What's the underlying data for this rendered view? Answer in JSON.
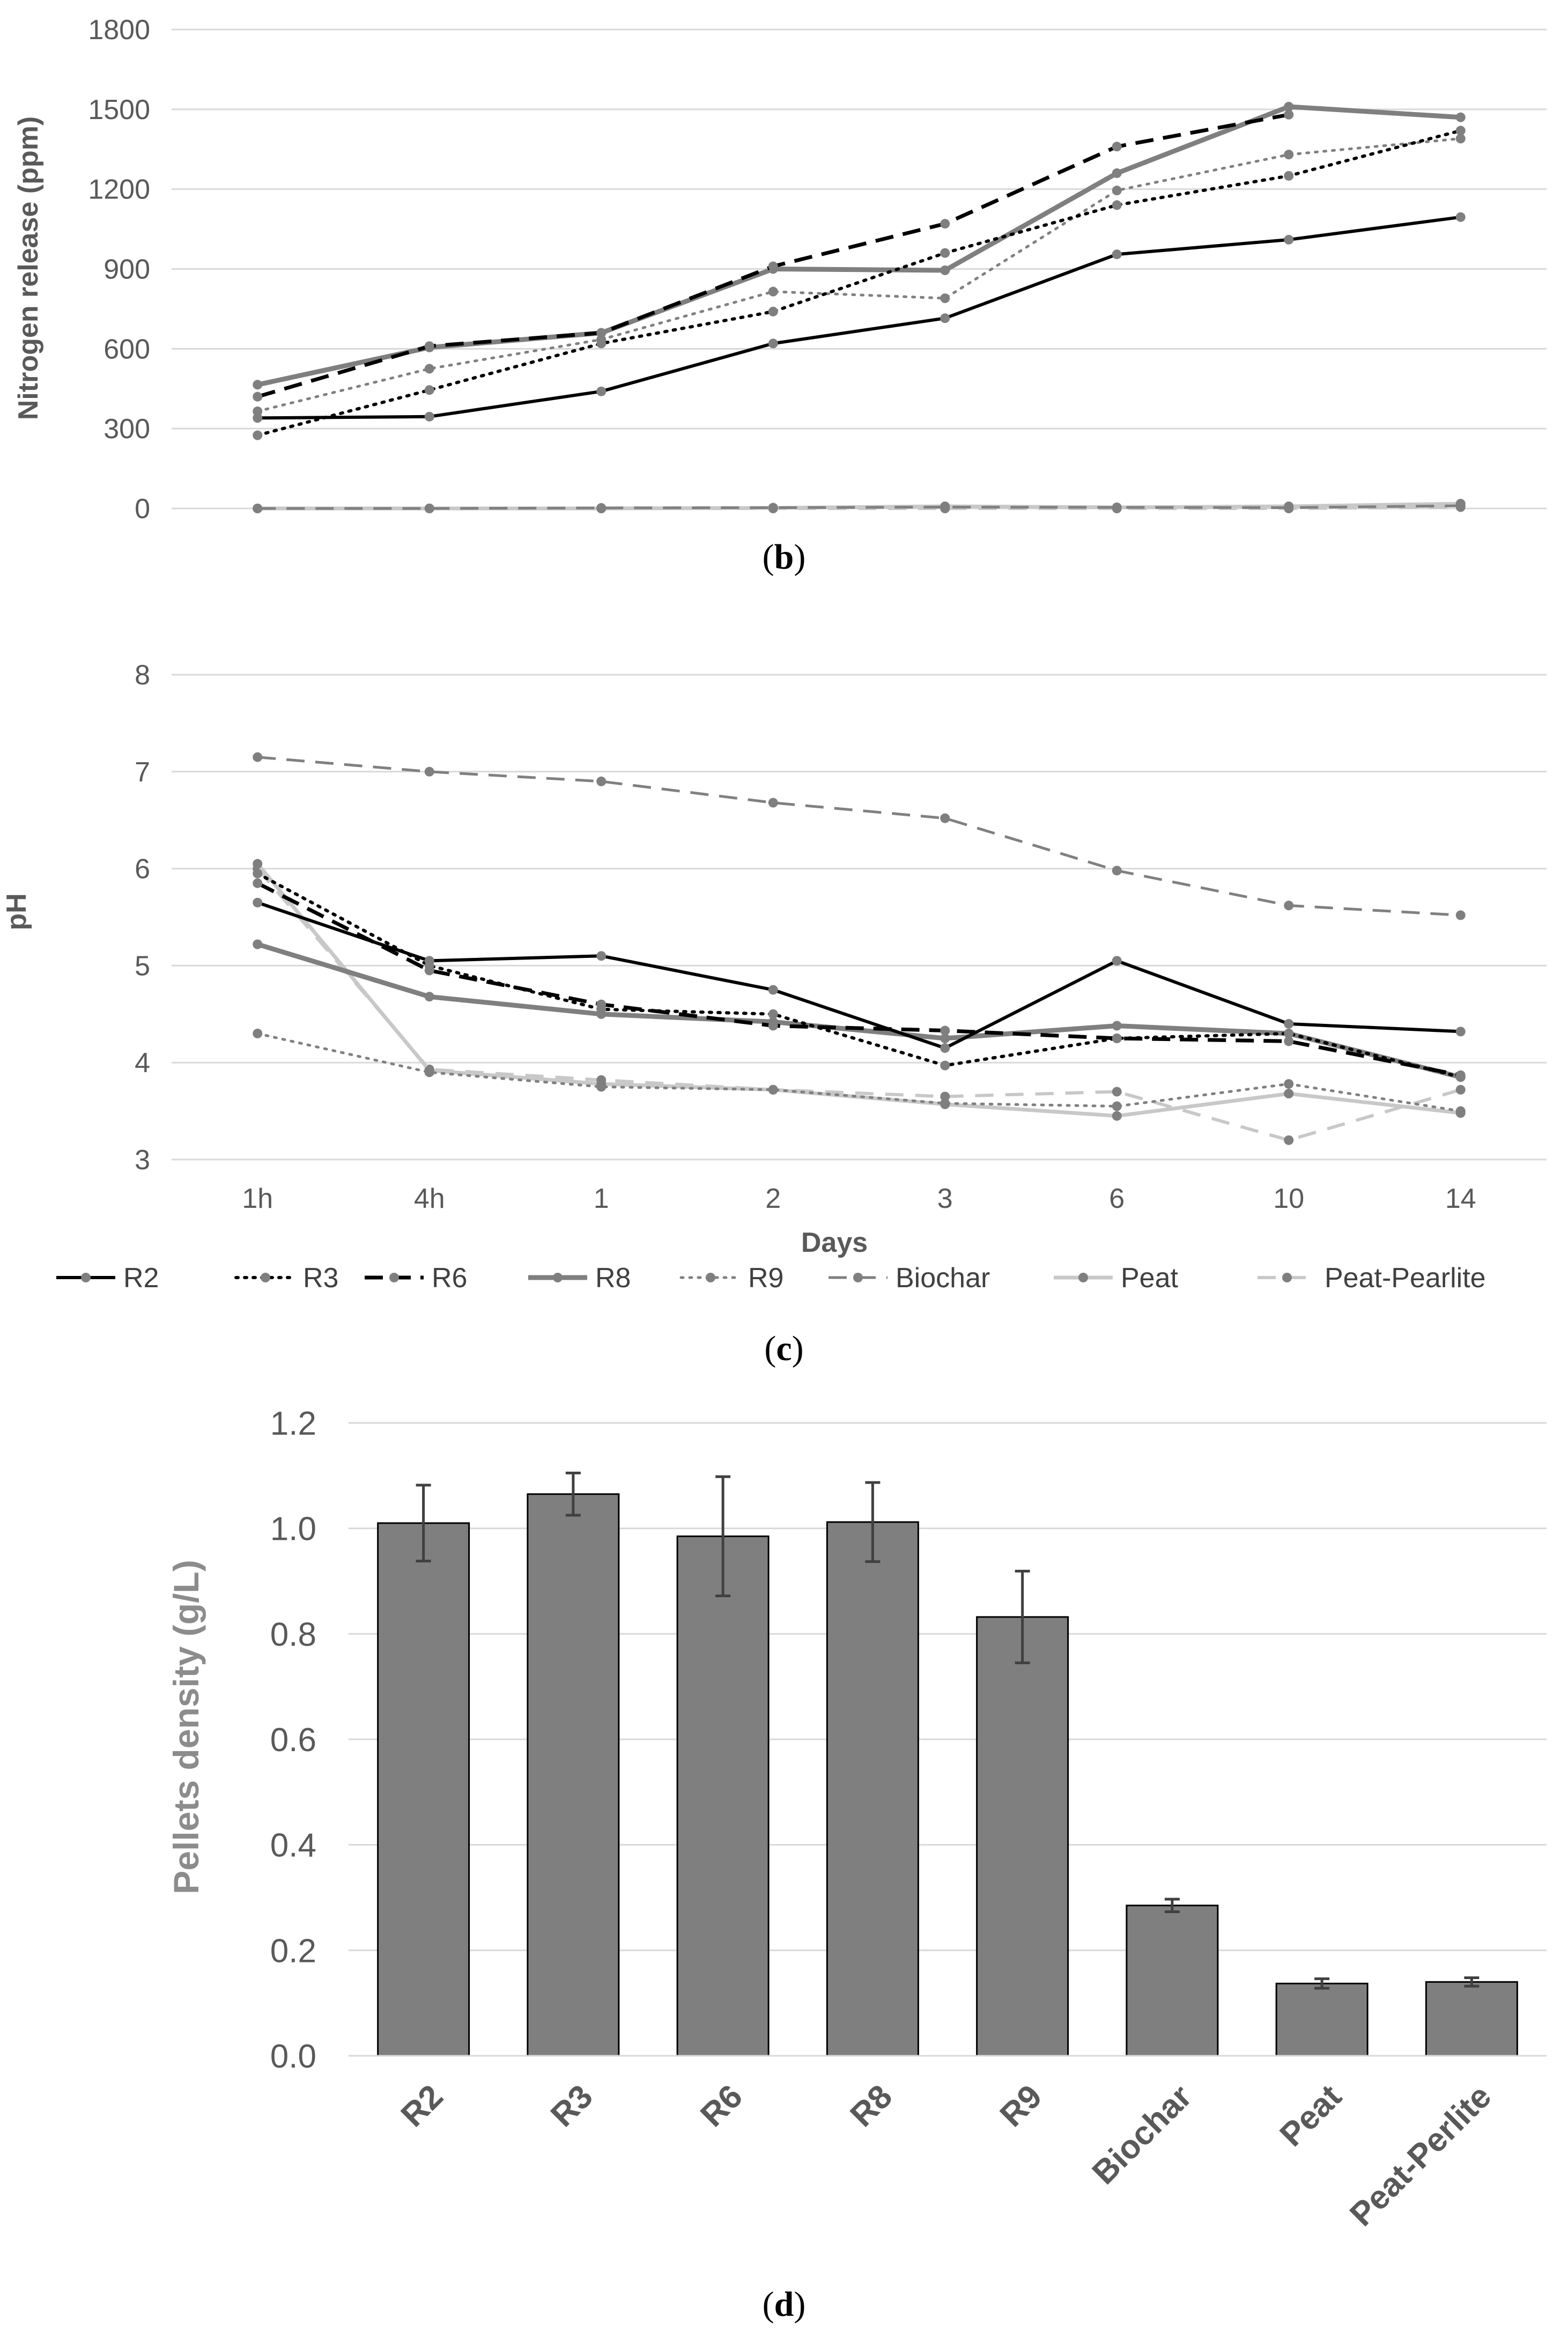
{
  "chart_data": [
    {
      "id": "b",
      "type": "line",
      "panel_label_pre": "(",
      "panel_label_letter": "b",
      "panel_label_post": ")",
      "title": "",
      "xlabel": "",
      "ylabel": "Nitrogen release (ppm)",
      "ylim": [
        0,
        1800
      ],
      "yticks": [
        "0",
        "300",
        "600",
        "900",
        "1200",
        "1500",
        "1800"
      ],
      "categories": [
        "1h",
        "4h",
        "1",
        "2",
        "3",
        "6",
        "10",
        "14"
      ],
      "show_x_tick_labels": false,
      "series": [
        {
          "name": "R2",
          "values": [
            340,
            345,
            440,
            620,
            715,
            955,
            1010,
            1095
          ]
        },
        {
          "name": "R3",
          "values": [
            275,
            445,
            620,
            740,
            960,
            1140,
            1250,
            1420
          ]
        },
        {
          "name": "R6",
          "values": [
            420,
            610,
            660,
            910,
            1070,
            1360,
            1480,
            null
          ]
        },
        {
          "name": "R8",
          "values": [
            465,
            605,
            660,
            900,
            895,
            1260,
            1510,
            1470
          ]
        },
        {
          "name": "R9",
          "values": [
            365,
            525,
            635,
            815,
            790,
            1195,
            1330,
            1390
          ]
        },
        {
          "name": "Biochar",
          "values": [
            0,
            0,
            2,
            3,
            5,
            4,
            3,
            10
          ]
        },
        {
          "name": "Peat",
          "values": [
            0,
            0,
            0,
            2,
            8,
            4,
            8,
            18
          ]
        },
        {
          "name": "Peat-Pearlite",
          "values": [
            0,
            0,
            0,
            0,
            0,
            0,
            0,
            5
          ]
        }
      ]
    },
    {
      "id": "c",
      "type": "line",
      "panel_label_pre": "(",
      "panel_label_letter": "c",
      "panel_label_post": ")",
      "title": "",
      "xlabel": "Days",
      "ylabel": "pH",
      "ylim": [
        3,
        8
      ],
      "yticks": [
        "3",
        "4",
        "5",
        "6",
        "7",
        "8"
      ],
      "categories": [
        "1h",
        "4h",
        "1",
        "2",
        "3",
        "6",
        "10",
        "14"
      ],
      "show_x_tick_labels": true,
      "series": [
        {
          "name": "R2",
          "values": [
            5.65,
            5.05,
            5.1,
            4.75,
            4.15,
            5.05,
            4.4,
            4.32
          ]
        },
        {
          "name": "R3",
          "values": [
            5.95,
            5.0,
            4.55,
            4.5,
            3.97,
            4.25,
            4.3,
            3.85
          ]
        },
        {
          "name": "R6",
          "values": [
            5.85,
            4.95,
            4.6,
            4.38,
            4.33,
            4.25,
            4.22,
            3.87
          ]
        },
        {
          "name": "R8",
          "values": [
            5.22,
            4.68,
            4.5,
            4.42,
            4.25,
            4.38,
            4.3,
            3.85
          ]
        },
        {
          "name": "R9",
          "values": [
            4.3,
            3.9,
            3.75,
            3.72,
            3.58,
            3.55,
            3.78,
            3.5
          ]
        },
        {
          "name": "Biochar",
          "values": [
            7.15,
            7.0,
            6.9,
            6.68,
            6.52,
            5.98,
            5.62,
            5.52
          ]
        },
        {
          "name": "Peat",
          "values": [
            6.05,
            3.92,
            3.78,
            3.72,
            3.57,
            3.45,
            3.68,
            3.48
          ]
        },
        {
          "name": "Peat-Pearlite",
          "values": [
            6.0,
            3.93,
            3.82,
            3.72,
            3.65,
            3.7,
            3.2,
            3.72
          ]
        }
      ],
      "legend": {
        "placement": "bottom",
        "entries": [
          "R2",
          "R3",
          "R6",
          "R8",
          "R9",
          "Biochar",
          "Peat",
          "Peat-Pearlite"
        ]
      }
    },
    {
      "id": "d",
      "type": "bar",
      "panel_label_pre": "(",
      "panel_label_letter": "d",
      "panel_label_post": ")",
      "title": "",
      "xlabel": "",
      "ylabel": "Pellets density (g/L)",
      "ylim": [
        0,
        1.2
      ],
      "yticks": [
        "0.0",
        "0.2",
        "0.4",
        "0.6",
        "0.8",
        "1.0",
        "1.2"
      ],
      "categories": [
        "R2",
        "R3",
        "R6",
        "R8",
        "R9",
        "Biochar",
        "Peat",
        "Peat-Perlite"
      ],
      "values": [
        1.01,
        1.065,
        0.985,
        1.012,
        0.832,
        0.285,
        0.137,
        0.14
      ],
      "errors": [
        0.072,
        0.04,
        0.113,
        0.075,
        0.087,
        0.012,
        0.009,
        0.008
      ]
    }
  ],
  "colors": {
    "R2": "#000000",
    "R3": "#000000",
    "R6": "#000000",
    "R8": "#7f7f7f",
    "R9": "#808080",
    "Biochar": "#808080",
    "Peat": "#c8c8c8",
    "Peat-Pearlite": "#c8c8c8",
    "marker": "#7f7f7f",
    "bar_fill": "#7f7f7f",
    "bar_stroke": "#000000",
    "gridline": "#d9d9d9",
    "tick_text": "#595959"
  }
}
